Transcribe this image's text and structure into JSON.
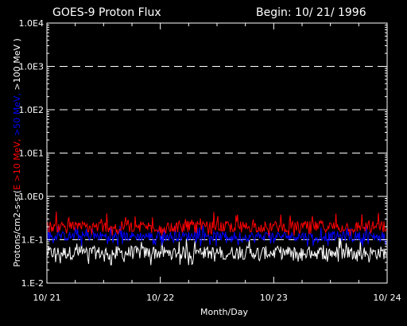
{
  "chart_data": {
    "type": "line",
    "title": "GOES-9 Proton Flux",
    "begin_label": "Begin: 10/ 21/ 1996",
    "xlabel": "Month/Day",
    "ylabel_parts": [
      {
        "text": "Protons/cm2-s-sr(",
        "color": "#ffffff"
      },
      {
        "text": "E >10 MeV, ",
        "color": "#ff0000"
      },
      {
        "text": ">50 MeV, ",
        "color": "#0000ff"
      },
      {
        "text": ">100 MeV )",
        "color": "#ffffff"
      }
    ],
    "y_scale": "log",
    "ylim": [
      0.01,
      10000
    ],
    "y_ticks": [
      {
        "value": 0.01,
        "label": "1.E-2"
      },
      {
        "value": 0.1,
        "label": "1.E-1"
      },
      {
        "value": 1,
        "label": "1.0E0"
      },
      {
        "value": 10,
        "label": "1.0E1"
      },
      {
        "value": 100,
        "label": "1.0E2"
      },
      {
        "value": 1000,
        "label": "1.0E3"
      },
      {
        "value": 10000,
        "label": "1.0E4"
      }
    ],
    "x_ticks": [
      "10/ 21",
      "10/ 22",
      "10/ 23",
      "10/ 24"
    ],
    "grid": "dashed horizontal at decades",
    "series": [
      {
        "name": ">10 MeV",
        "color": "#ff0000",
        "min": 0.12,
        "typical": 0.2,
        "max": 0.45
      },
      {
        "name": ">50 MeV",
        "color": "#0000ff",
        "min": 0.07,
        "typical": 0.12,
        "max": 0.22
      },
      {
        "name": ">100 MeV",
        "color": "#ffffff",
        "min": 0.025,
        "typical": 0.05,
        "max": 0.12
      }
    ]
  }
}
